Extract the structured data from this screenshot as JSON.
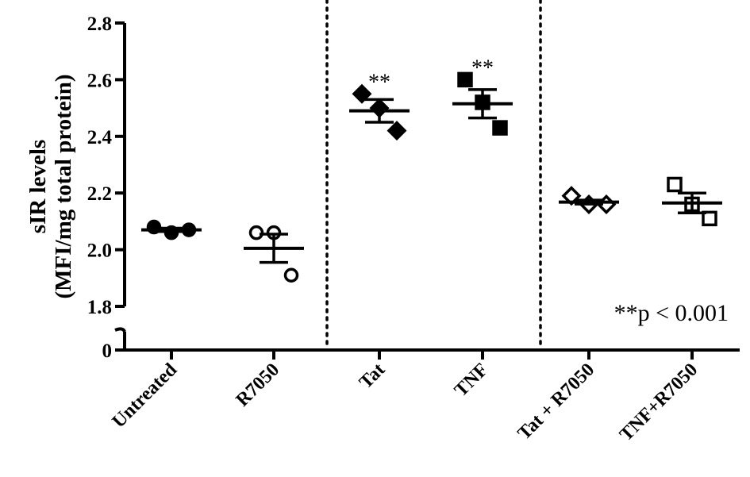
{
  "chart_data": {
    "type": "scatter",
    "ylabel_line1": "sIR levels",
    "ylabel_line2": "(MFI/mg total protein)",
    "ylim": [
      1.8,
      2.8
    ],
    "yticks": [
      "1.8",
      "2.0",
      "2.2",
      "2.4",
      "2.6",
      "2.8"
    ],
    "ybreak_label": "0",
    "categories": [
      "Untreated",
      "R7050",
      "Tat",
      "TNF",
      "Tat + R7050",
      "TNF+R7050"
    ],
    "groups": [
      {
        "name": "Untreated",
        "marker": "circle",
        "filled": true,
        "points": [
          2.08,
          2.06,
          2.07
        ],
        "mean": 2.07,
        "error": 0.006
      },
      {
        "name": "R7050",
        "marker": "circle",
        "filled": false,
        "points": [
          2.06,
          2.06,
          1.91
        ],
        "mean": 2.005,
        "error": 0.05
      },
      {
        "name": "Tat",
        "marker": "diamond",
        "filled": true,
        "points": [
          2.55,
          2.5,
          2.42
        ],
        "mean": 2.49,
        "error": 0.04
      },
      {
        "name": "TNF",
        "marker": "square",
        "filled": true,
        "points": [
          2.6,
          2.52,
          2.43
        ],
        "mean": 2.515,
        "error": 0.05
      },
      {
        "name": "Tat + R7050",
        "marker": "diamond",
        "filled": false,
        "points": [
          2.19,
          2.16,
          2.16
        ],
        "mean": 2.168,
        "error": 0.007
      },
      {
        "name": "TNF+R7050",
        "marker": "square",
        "filled": false,
        "points": [
          2.23,
          2.16,
          2.11
        ],
        "mean": 2.165,
        "error": 0.035
      }
    ],
    "significance": [
      {
        "group": "Tat",
        "label": "**"
      },
      {
        "group": "TNF",
        "label": "**"
      }
    ],
    "annotation": "**p < 0.001",
    "separators_after": [
      "R7050",
      "TNF"
    ]
  }
}
